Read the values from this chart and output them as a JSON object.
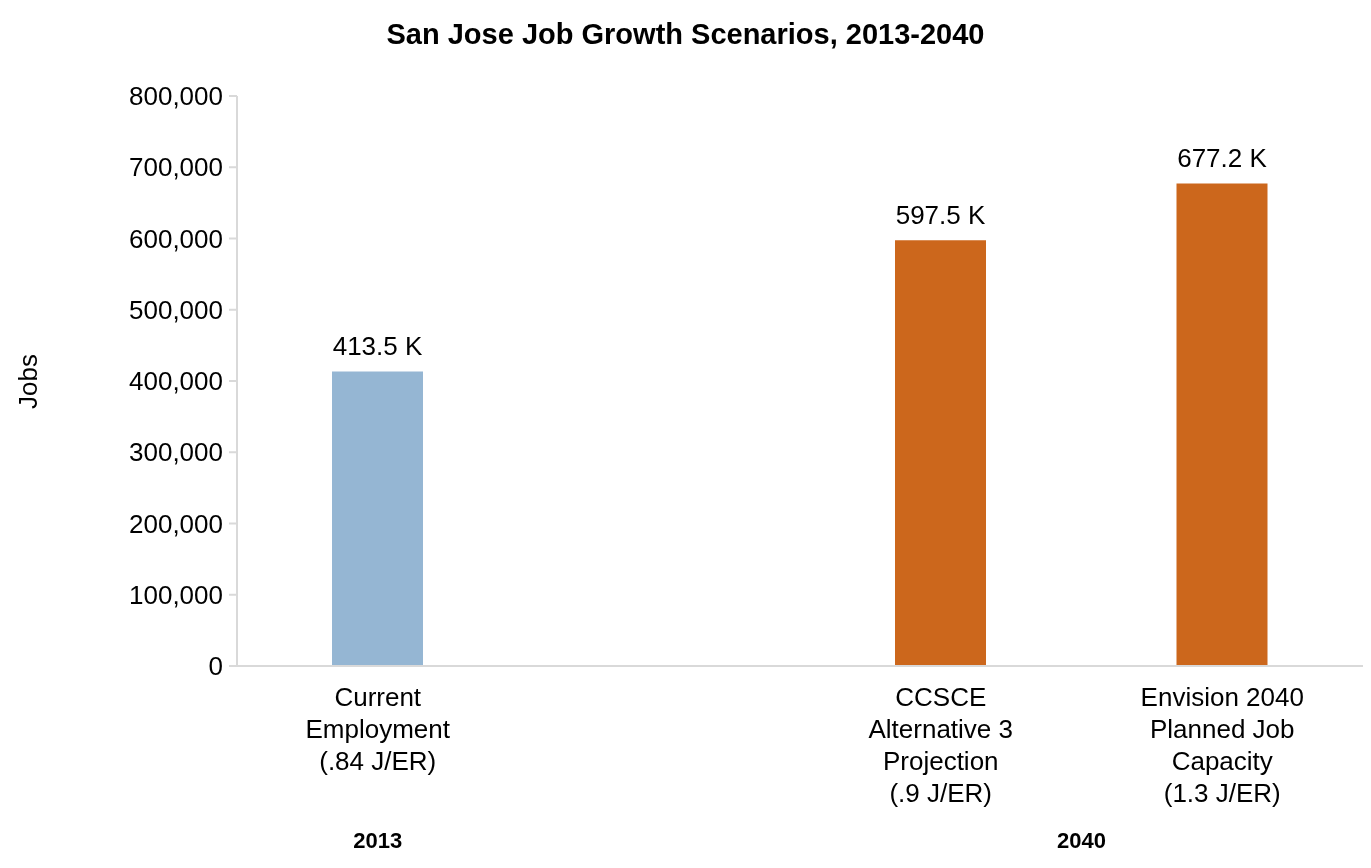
{
  "chart_data": {
    "type": "bar",
    "title": "San Jose Job Growth Scenarios, 2013-2040",
    "ylabel": "Jobs",
    "categories": [
      "Current\nEmployment\n(.84 J/ER)",
      null,
      "CCSCE\nAlternative 3\nProjection\n(.9 J/ER)",
      "Envision 2040\nPlanned Job\nCapacity\n(1.3 J/ER)"
    ],
    "values": [
      413500,
      null,
      597500,
      677200
    ],
    "value_labels": [
      "413.5 K",
      null,
      "597.5 K",
      "677.2 K"
    ],
    "colors": [
      "#95b6d3",
      null,
      "#cc671c",
      "#cc671c"
    ],
    "annotations": [
      "2013",
      "2040"
    ],
    "ylim": [
      0,
      800000
    ],
    "yticks": [
      0,
      {
        "value": 100000,
        "label": "100,000"
      },
      {
        "value": 200000,
        "label": "200,000"
      },
      {
        "value": 300000,
        "label": "300,000"
      },
      {
        "value": 400000,
        "label": "400,000"
      },
      {
        "value": 500000,
        "label": "500,000"
      },
      {
        "value": 600000,
        "label": "600,000"
      },
      {
        "value": 700000,
        "label": "700,000"
      },
      {
        "value": 800000,
        "label": "800,000"
      }
    ],
    "grid": false,
    "legend": false
  }
}
